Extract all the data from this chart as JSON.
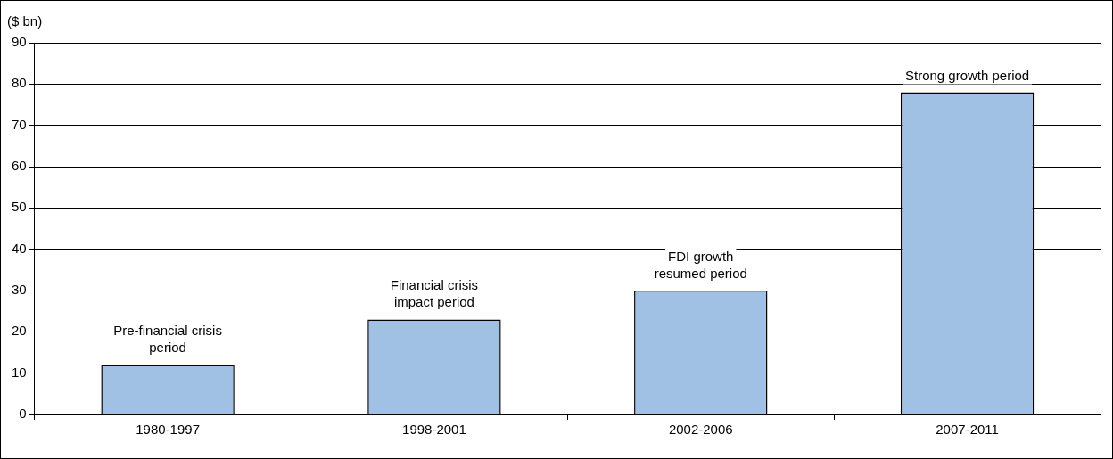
{
  "chart_data": {
    "type": "bar",
    "ylabel": "($ bn)",
    "categories": [
      "1980-1997",
      "1998-2001",
      "2002-2006",
      "2007-2011"
    ],
    "values": [
      12,
      23,
      30,
      78
    ],
    "color": "#a0c0e4",
    "ylim": [
      0,
      90
    ],
    "yticks": [
      0,
      10,
      20,
      30,
      40,
      50,
      60,
      70,
      80,
      90
    ],
    "grid": "y",
    "legend": false,
    "annotations": [
      {
        "text": "Pre-financial crisis\nperiod",
        "x": "1980-1997",
        "y": 12
      },
      {
        "text": "Financial crisis\nimpact period",
        "x": "1998-2001",
        "y": 23
      },
      {
        "text": "FDI growth\nresumed period",
        "x": "2002-2006",
        "y": 30
      },
      {
        "text": "Strong growth period",
        "x": "2007-2011",
        "y": 78
      }
    ]
  }
}
